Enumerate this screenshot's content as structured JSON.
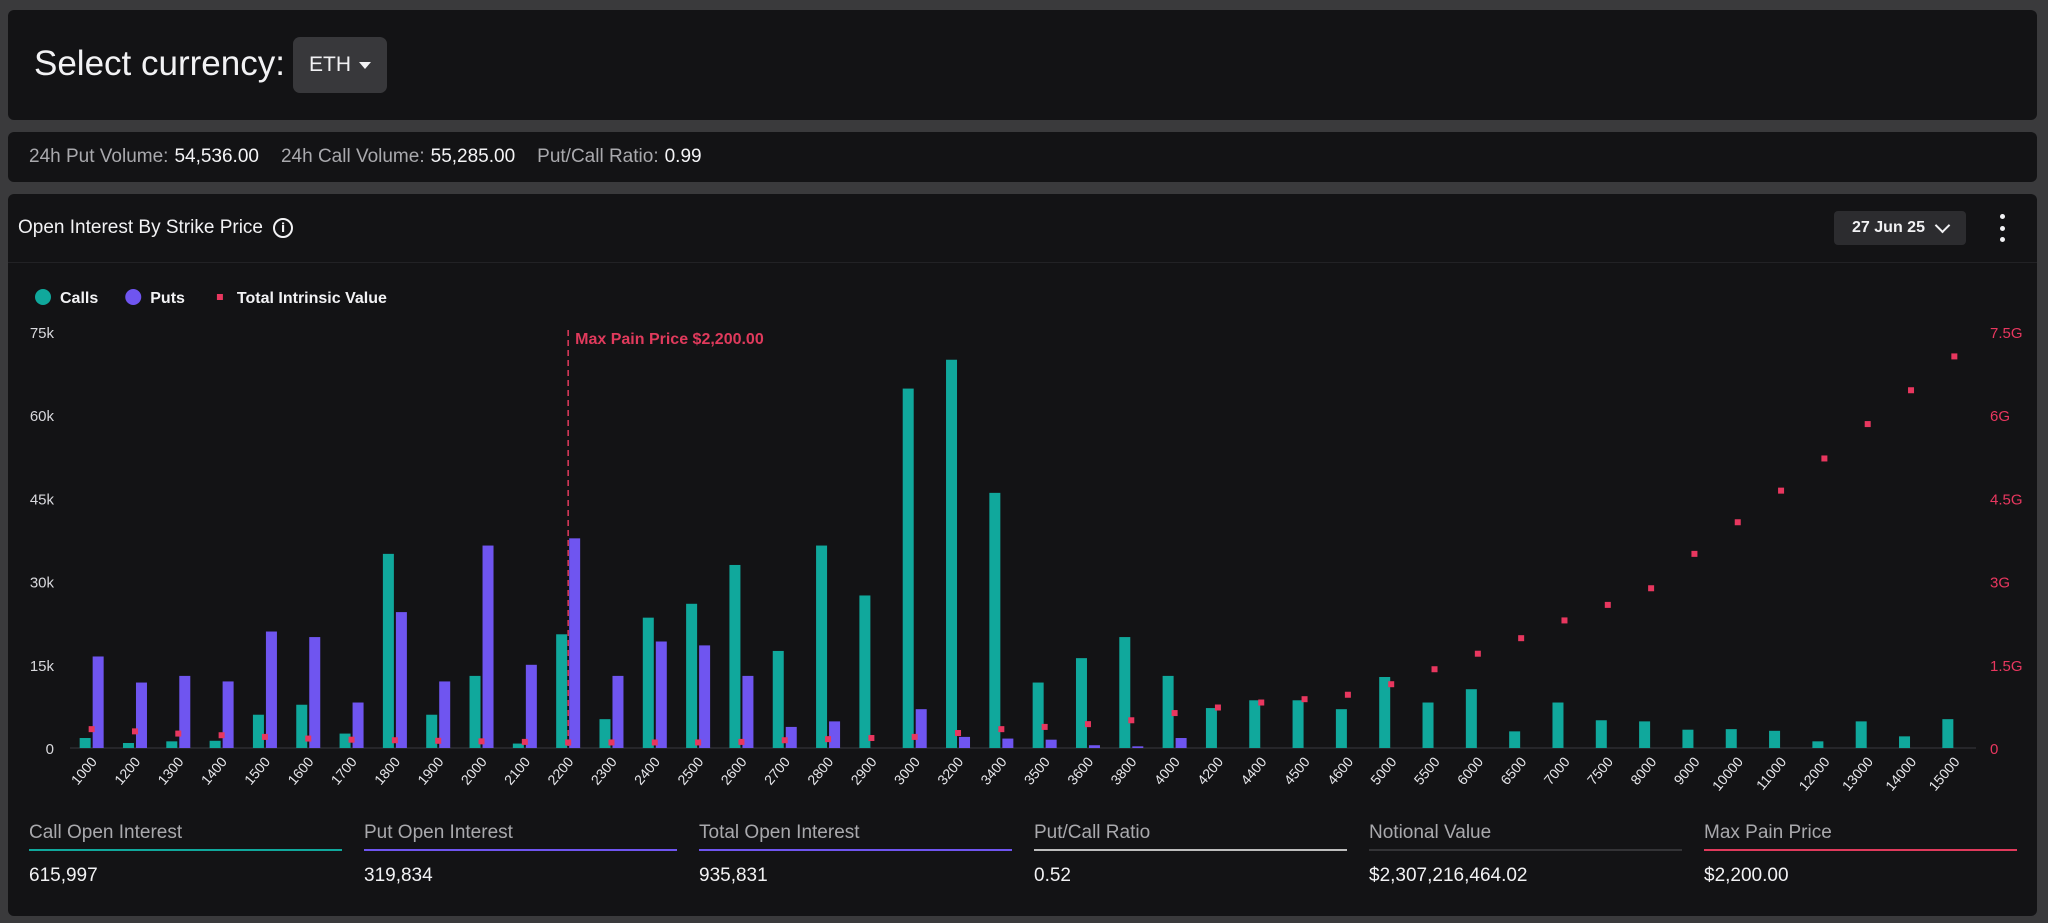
{
  "header": {
    "title": "Select currency:",
    "currency": "ETH"
  },
  "stats": [
    {
      "label": "24h Put Volume:",
      "value": "54,536.00"
    },
    {
      "label": "24h Call Volume:",
      "value": "55,285.00"
    },
    {
      "label": "Put/Call Ratio:",
      "value": "0.99"
    }
  ],
  "chart_panel": {
    "title": "Open Interest By Strike Price",
    "expiry": "27 Jun 25"
  },
  "colors": {
    "calls": "#10a89c",
    "puts": "#6f55f0",
    "intrinsic": "#e8375f",
    "max_pain": "#e03a5c",
    "neutral": "#bdbdbd",
    "notional": "#333336"
  },
  "chart_data": {
    "type": "bar",
    "legend": [
      "Calls",
      "Puts",
      "Total Intrinsic Value"
    ],
    "legend_position": "top-left",
    "categories": [
      "1000",
      "1200",
      "1300",
      "1400",
      "1500",
      "1600",
      "1700",
      "1800",
      "1900",
      "2000",
      "2100",
      "2200",
      "2300",
      "2400",
      "2500",
      "2600",
      "2700",
      "2800",
      "2900",
      "3000",
      "3200",
      "3400",
      "3500",
      "3600",
      "3800",
      "4000",
      "4200",
      "4400",
      "4500",
      "4600",
      "5000",
      "5500",
      "6000",
      "6500",
      "7000",
      "7500",
      "8000",
      "9000",
      "10000",
      "11000",
      "12000",
      "13000",
      "14000",
      "15000"
    ],
    "series": [
      {
        "name": "Calls",
        "axis": "left",
        "values": [
          1800,
          900,
          1200,
          1300,
          6000,
          7800,
          2600,
          35000,
          6000,
          13000,
          800,
          20500,
          5200,
          23500,
          26000,
          33000,
          17500,
          36500,
          27500,
          64800,
          70000,
          46000,
          11800,
          16200,
          20000,
          13000,
          7200,
          8600,
          8600,
          7000,
          12800,
          8200,
          10600,
          3000,
          8200,
          5000,
          4800,
          3300,
          3400,
          3100,
          1200,
          4800,
          2100,
          5200
        ]
      },
      {
        "name": "Puts",
        "axis": "left",
        "values": [
          16500,
          11800,
          13000,
          12000,
          21000,
          20000,
          8200,
          24500,
          12000,
          36500,
          15000,
          37800,
          13000,
          19200,
          18500,
          13000,
          3800,
          4800,
          0,
          7000,
          2000,
          1700,
          1500,
          500,
          300,
          1800,
          0,
          0,
          0,
          0,
          0,
          0,
          0,
          0,
          0,
          0,
          0,
          0,
          0,
          0,
          0,
          0,
          0,
          0
        ]
      },
      {
        "name": "Total Intrinsic Value",
        "axis": "right",
        "values": [
          0.34,
          0.3,
          0.26,
          0.23,
          0.2,
          0.17,
          0.15,
          0.14,
          0.13,
          0.12,
          0.11,
          0.1,
          0.1,
          0.1,
          0.1,
          0.11,
          0.14,
          0.16,
          0.18,
          0.2,
          0.27,
          0.34,
          0.38,
          0.43,
          0.5,
          0.63,
          0.73,
          0.82,
          0.88,
          0.96,
          1.15,
          1.42,
          1.7,
          1.98,
          2.3,
          2.58,
          2.88,
          3.5,
          4.07,
          4.64,
          5.22,
          5.84,
          6.45,
          7.06
        ]
      }
    ],
    "y_left": {
      "ylim": [
        0,
        75000
      ],
      "ticks": [
        "0",
        "15k",
        "30k",
        "45k",
        "60k",
        "75k"
      ],
      "tick_values": [
        0,
        15000,
        30000,
        45000,
        60000,
        75000
      ]
    },
    "y_right": {
      "ylim": [
        0,
        7.5
      ],
      "ticks": [
        "0",
        "1.5G",
        "3G",
        "4.5G",
        "6G",
        "7.5G"
      ],
      "tick_values": [
        0,
        1.5,
        3,
        4.5,
        6,
        7.5
      ]
    },
    "max_pain": {
      "label": "Max Pain Price $2,200.00",
      "strike": "2200"
    },
    "grid": false
  },
  "metrics": [
    {
      "label": "Call Open Interest",
      "value": "615,997",
      "color": "#10a89c"
    },
    {
      "label": "Put Open Interest",
      "value": "319,834",
      "color": "#6f55f0"
    },
    {
      "label": "Total Open Interest",
      "value": "935,831",
      "color": "#6f55f0"
    },
    {
      "label": "Put/Call Ratio",
      "value": "0.52",
      "color": "#bdbdbd"
    },
    {
      "label": "Notional Value",
      "value": "$2,307,216,464.02",
      "color": "#333336"
    },
    {
      "label": "Max Pain Price",
      "value": "$2,200.00",
      "color": "#e03a5c"
    }
  ]
}
